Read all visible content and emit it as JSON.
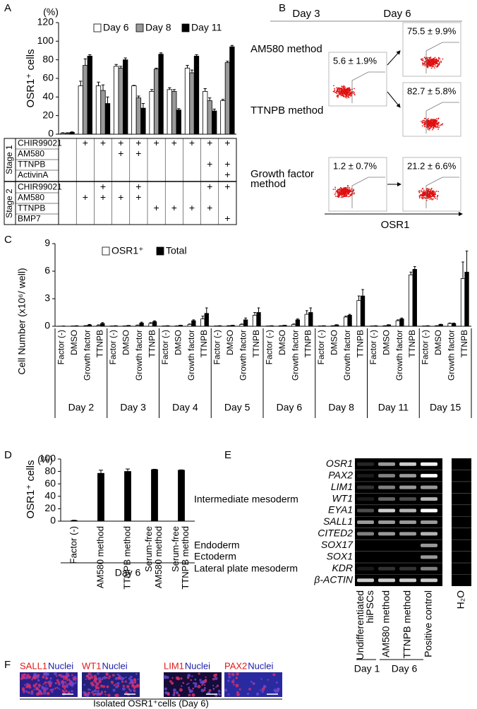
{
  "panel_letters": [
    "A",
    "B",
    "C",
    "D",
    "E",
    "F"
  ],
  "chart_data": [
    {
      "type": "bar",
      "ylabel": "OSR1⁺ cells",
      "yunit": "(%)",
      "ylim": [
        0,
        120
      ],
      "yticks": [
        0,
        20,
        40,
        60,
        80,
        100,
        120
      ],
      "categories": [
        null,
        null,
        null,
        null,
        null,
        null,
        null,
        null,
        null,
        null
      ],
      "series": [
        {
          "name": "Day 6",
          "color": "#ffffff",
          "values": [
            1,
            52,
            52,
            73,
            52,
            46,
            48,
            71,
            46,
            36
          ],
          "errors": [
            0.5,
            5,
            4,
            2,
            0.5,
            2,
            2,
            3,
            3,
            1.5
          ]
        },
        {
          "name": "Day 8",
          "color": "#999999",
          "values": [
            1,
            74,
            47,
            71,
            39,
            70,
            46,
            66,
            36,
            77
          ],
          "errors": [
            0.5,
            7,
            6,
            2,
            2,
            1,
            2,
            3,
            3,
            1.5
          ]
        },
        {
          "name": "Day 11",
          "color": "#000000",
          "values": [
            2,
            84,
            33,
            80,
            28,
            86,
            26,
            84,
            25,
            94
          ],
          "errors": [
            0.5,
            1.5,
            7,
            2,
            5,
            1.5,
            1.5,
            1.5,
            2,
            1.5
          ]
        }
      ],
      "conditions": [
        {
          "stage": "Stage 1",
          "rows": [
            {
              "label": "CHIR99021",
              "cells": [
                null,
                "+",
                "+",
                "+",
                "+",
                "+",
                "+",
                "+",
                "+",
                "+"
              ]
            },
            {
              "label": "AM580",
              "cells": [
                null,
                null,
                null,
                "+",
                "+",
                null,
                null,
                null,
                null,
                null
              ]
            },
            {
              "label": "TTNPB",
              "cells": [
                null,
                null,
                null,
                null,
                null,
                null,
                null,
                null,
                "+",
                "+"
              ]
            },
            {
              "label": "ActivinA",
              "cells": [
                null,
                null,
                null,
                null,
                null,
                null,
                null,
                null,
                null,
                "+"
              ]
            }
          ]
        },
        {
          "stage": "Stage 2",
          "rows": [
            {
              "label": "CHIR99021",
              "cells": [
                null,
                null,
                "+",
                null,
                "+",
                null,
                null,
                null,
                "+",
                "+"
              ]
            },
            {
              "label": "AM580",
              "cells": [
                null,
                "+",
                "+",
                "+",
                "+",
                null,
                null,
                null,
                null,
                null
              ]
            },
            {
              "label": "TTNPB",
              "cells": [
                null,
                null,
                null,
                null,
                null,
                "+",
                "+",
                "+",
                "+",
                null
              ]
            },
            {
              "label": "BMP7",
              "cells": [
                null,
                null,
                null,
                null,
                null,
                null,
                null,
                null,
                null,
                "+"
              ]
            }
          ]
        }
      ]
    },
    {
      "type": "bar",
      "ylabel": "Cell Number (x10⁶/ well)",
      "ylim": [
        0,
        9
      ],
      "yticks": [
        0,
        3,
        6,
        9
      ],
      "categories": [
        "Factor (-)",
        "DMSO",
        "Growth factor",
        "TTNPB",
        "Factor (-)",
        "DMSO",
        "Growth factor",
        "TTNPB",
        "Factor (-)",
        "DMSO",
        "Growth factor",
        "TTNPB",
        "Factor (-)",
        "DMSO",
        "Growth factor",
        "TTNPB",
        "Factor (-)",
        "DMSO",
        "Growth factor",
        "TTNPB",
        "Factor (-)",
        "DMSO",
        "Growth factor",
        "TTNPB",
        "Factor (-)",
        "DMSO",
        "Growth factor",
        "TTNPB",
        "Factor (-)",
        "DMSO",
        "Growth factor",
        "TTNPB"
      ],
      "groups": [
        "Day 2",
        "Day 3",
        "Day 4",
        "Day 5",
        "Day 6",
        "Day 8",
        "Day 11",
        "Day 15"
      ],
      "series": [
        {
          "name": "OSR1⁺",
          "color": "#ffffff",
          "values": [
            0,
            0.02,
            0.05,
            0.1,
            0.02,
            0.03,
            0.1,
            0.3,
            0.02,
            0.03,
            0.2,
            0.8,
            0.02,
            0.05,
            0.2,
            1.2,
            0.02,
            0.05,
            0.2,
            1.3,
            0.02,
            0.05,
            1,
            2.8,
            0.02,
            0.05,
            0.6,
            5.6,
            0.02,
            0.05,
            0.3,
            5.2
          ],
          "errors": [
            0.01,
            0.01,
            0.02,
            0.05,
            0.01,
            0.01,
            0.03,
            0.1,
            0.01,
            0.01,
            0.05,
            0.3,
            0.01,
            0.01,
            0.05,
            0.3,
            0.01,
            0.01,
            0.05,
            0.4,
            0.01,
            0.01,
            0.1,
            0.5,
            0.01,
            0.01,
            0.1,
            0.3,
            0.01,
            0.01,
            0.05,
            1.8
          ]
        },
        {
          "name": "Total",
          "color": "#000000",
          "values": [
            0.02,
            0.05,
            0.15,
            0.3,
            0.05,
            0.08,
            0.35,
            0.5,
            0.05,
            0.1,
            0.6,
            1.4,
            0.05,
            0.1,
            0.7,
            1.5,
            0.05,
            0.1,
            0.7,
            1.5,
            0.05,
            0.15,
            1.2,
            3.3,
            0.05,
            0.15,
            0.8,
            6.2,
            0.05,
            0.2,
            0.3,
            5.9
          ],
          "errors": [
            0.01,
            0.01,
            0.05,
            0.1,
            0.01,
            0.01,
            0.1,
            0.1,
            0.01,
            0.01,
            0.1,
            0.6,
            0.01,
            0.01,
            0.2,
            0.5,
            0.01,
            0.01,
            0.1,
            0.5,
            0.01,
            0.02,
            0.1,
            0.7,
            0.01,
            0.02,
            0.1,
            0.3,
            0.01,
            0.02,
            0.05,
            2.3
          ]
        }
      ]
    },
    {
      "type": "bar",
      "ylabel": "OSR1⁺ cells",
      "yunit": "(%)",
      "ylim": [
        0,
        100
      ],
      "yticks": [
        0,
        20,
        40,
        60,
        80,
        100
      ],
      "categories": [
        "Factor (-)",
        "AM580 method",
        "TTNPB method",
        "Serum-free\nAM580 method",
        "Serum-free\nTTNPB method"
      ],
      "groups": [
        "Day 6"
      ],
      "color": "#000000",
      "values": [
        1,
        77,
        80,
        83,
        82
      ],
      "errors": [
        0.5,
        5,
        4,
        0.5,
        0.5
      ]
    }
  ],
  "flow_cytometry": {
    "columns": [
      "Day 3",
      "Day 6"
    ],
    "rows": [
      "AM580 method",
      "TTNPB method",
      "Growth factor\nmethod"
    ],
    "gates": [
      "5.6 ± 1.9%",
      "75.5 ± 9.9%",
      "82.7 ± 5.8%",
      "1.2 ± 0.7%",
      "21.2 ± 6.6%"
    ],
    "xlabel": "OSR1"
  },
  "rt_pcr": {
    "genes": [
      "OSR1",
      "PAX2",
      "LIM1",
      "WT1",
      "EYA1",
      "SALL1",
      "CITED2",
      "SOX17",
      "SOX1",
      "KDR",
      "β-ACTIN"
    ],
    "groups": [
      "Intermediate mesoderm",
      "Endoderm",
      "Ectoderm",
      "Lateral plate mesoderm"
    ],
    "lanes": [
      "Undifferentiated\nhiPSCs",
      "AM580 method",
      "TTNPB method",
      "Positive control",
      "H₂O"
    ],
    "days": [
      "Day 1",
      "Day 6"
    ]
  },
  "immunostaining": {
    "panels": [
      {
        "marker": "SALL1",
        "stain": "Nuclei"
      },
      {
        "marker": "WT1",
        "stain": "Nuclei"
      },
      {
        "marker": "LIM1",
        "stain": "Nuclei"
      },
      {
        "marker": "PAX2",
        "stain": "Nuclei"
      }
    ],
    "caption": "Isolated OSR1⁺cells (Day 6)"
  }
}
